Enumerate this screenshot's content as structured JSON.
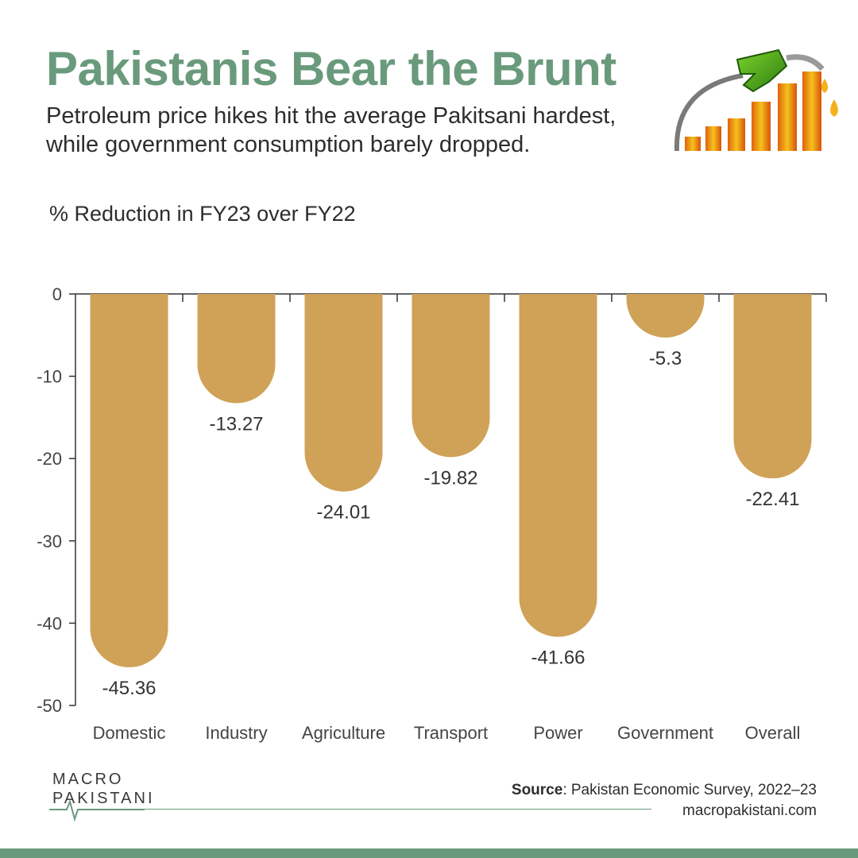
{
  "header": {
    "title": "Pakistanis Bear the Brunt",
    "subtitle": "Petroleum price hikes hit the average Pakitsani hardest, while government consumption barely dropped.",
    "unit_label": "% Reduction in FY23 over FY22"
  },
  "colors": {
    "accent": "#6a9a7c",
    "bar": "#cfa257",
    "text": "#2d2d2d",
    "axis": "#333333"
  },
  "chart_data": {
    "type": "bar",
    "title": "",
    "xlabel": "",
    "ylabel": "",
    "categories": [
      "Domestic",
      "Industry",
      "Agriculture",
      "Transport",
      "Power",
      "Government",
      "Overall"
    ],
    "values": [
      -45.36,
      -13.27,
      -24.01,
      -19.82,
      -41.66,
      -5.3,
      -22.41
    ],
    "data_labels": [
      "-45.36",
      "-13.27",
      "-24.01",
      "-19.82",
      "-41.66",
      "-5.3",
      "-22.41"
    ],
    "ylim": [
      -50,
      0
    ],
    "yticks": [
      0,
      -10,
      -20,
      -30,
      -40,
      -50
    ],
    "ytick_labels": [
      "0",
      "-10",
      "-20",
      "-30",
      "-40",
      "-50"
    ],
    "grid": false,
    "legend": "none"
  },
  "footer": {
    "logo_line1": "MACRO",
    "logo_line2": "PAKISTANI",
    "source_label": "Source",
    "source_text": ": Pakistan Economic Survey, 2022–23",
    "website": "macropakistani.com"
  },
  "icons": {
    "illustration": "fuel-nozzle-rising-bars-icon",
    "logo": "macropakistani-logo"
  }
}
